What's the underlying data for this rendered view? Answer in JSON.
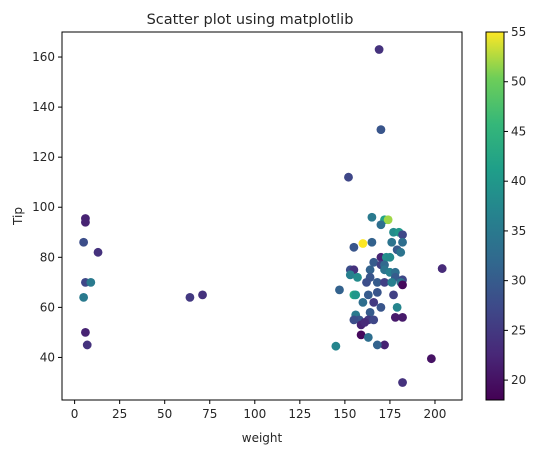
{
  "chart_data": {
    "type": "scatter",
    "title": "Scatter plot using matplotlib",
    "xlabel": "weight",
    "ylabel": "Tip",
    "xlim": [
      -7,
      215
    ],
    "ylim": [
      23,
      170
    ],
    "xticks": [
      0,
      25,
      50,
      75,
      100,
      125,
      150,
      175,
      200
    ],
    "yticks": [
      40,
      60,
      80,
      100,
      120,
      140,
      160
    ],
    "grid": false,
    "colormap": "viridis",
    "colorbar": {
      "range": [
        18,
        55
      ],
      "ticks": [
        20,
        25,
        30,
        35,
        40,
        45,
        50,
        55
      ]
    },
    "points": [
      {
        "x": 6,
        "y": 95.5,
        "c": 22
      },
      {
        "x": 6,
        "y": 94,
        "c": 22
      },
      {
        "x": 5,
        "y": 86,
        "c": 28
      },
      {
        "x": 13,
        "y": 82,
        "c": 24
      },
      {
        "x": 6,
        "y": 70,
        "c": 27
      },
      {
        "x": 9,
        "y": 70,
        "c": 35
      },
      {
        "x": 5,
        "y": 64,
        "c": 35
      },
      {
        "x": 6,
        "y": 50,
        "c": 22
      },
      {
        "x": 7,
        "y": 45,
        "c": 24
      },
      {
        "x": 64,
        "y": 64,
        "c": 25
      },
      {
        "x": 71,
        "y": 65,
        "c": 24
      },
      {
        "x": 169,
        "y": 163,
        "c": 24
      },
      {
        "x": 170,
        "y": 131,
        "c": 29
      },
      {
        "x": 152,
        "y": 112,
        "c": 27
      },
      {
        "x": 165,
        "y": 96,
        "c": 35
      },
      {
        "x": 172,
        "y": 95,
        "c": 42
      },
      {
        "x": 174,
        "y": 95,
        "c": 52
      },
      {
        "x": 170,
        "y": 93,
        "c": 33
      },
      {
        "x": 177,
        "y": 90,
        "c": 38
      },
      {
        "x": 180,
        "y": 90,
        "c": 40
      },
      {
        "x": 182,
        "y": 89,
        "c": 27
      },
      {
        "x": 165,
        "y": 86,
        "c": 31
      },
      {
        "x": 176,
        "y": 86,
        "c": 34
      },
      {
        "x": 160,
        "y": 85.5,
        "c": 55
      },
      {
        "x": 182,
        "y": 86,
        "c": 33
      },
      {
        "x": 155,
        "y": 84,
        "c": 29
      },
      {
        "x": 179,
        "y": 83,
        "c": 30
      },
      {
        "x": 181,
        "y": 82,
        "c": 34
      },
      {
        "x": 170,
        "y": 80,
        "c": 22
      },
      {
        "x": 173,
        "y": 80,
        "c": 39
      },
      {
        "x": 175,
        "y": 80,
        "c": 38
      },
      {
        "x": 166,
        "y": 78,
        "c": 30
      },
      {
        "x": 170,
        "y": 77,
        "c": 26
      },
      {
        "x": 172,
        "y": 77,
        "c": 32
      },
      {
        "x": 153,
        "y": 75,
        "c": 28
      },
      {
        "x": 155,
        "y": 75,
        "c": 24
      },
      {
        "x": 164,
        "y": 75,
        "c": 31
      },
      {
        "x": 172,
        "y": 75,
        "c": 34
      },
      {
        "x": 175,
        "y": 74,
        "c": 36
      },
      {
        "x": 178,
        "y": 74,
        "c": 33
      },
      {
        "x": 153,
        "y": 73,
        "c": 36
      },
      {
        "x": 157,
        "y": 72,
        "c": 38
      },
      {
        "x": 164,
        "y": 72,
        "c": 29
      },
      {
        "x": 178,
        "y": 72,
        "c": 30
      },
      {
        "x": 182,
        "y": 71,
        "c": 27
      },
      {
        "x": 181,
        "y": 70,
        "c": 34
      },
      {
        "x": 162,
        "y": 70,
        "c": 28
      },
      {
        "x": 168,
        "y": 70,
        "c": 30
      },
      {
        "x": 172,
        "y": 70,
        "c": 26
      },
      {
        "x": 176,
        "y": 70,
        "c": 36
      },
      {
        "x": 182,
        "y": 69,
        "c": 19
      },
      {
        "x": 204,
        "y": 75.5,
        "c": 23
      },
      {
        "x": 147,
        "y": 67,
        "c": 31
      },
      {
        "x": 155,
        "y": 65,
        "c": 43
      },
      {
        "x": 156,
        "y": 65,
        "c": 40
      },
      {
        "x": 163,
        "y": 65,
        "c": 30
      },
      {
        "x": 168,
        "y": 66,
        "c": 29
      },
      {
        "x": 177,
        "y": 65,
        "c": 26
      },
      {
        "x": 160,
        "y": 62,
        "c": 33
      },
      {
        "x": 166,
        "y": 62,
        "c": 25
      },
      {
        "x": 170,
        "y": 60,
        "c": 29
      },
      {
        "x": 179,
        "y": 60,
        "c": 37
      },
      {
        "x": 164,
        "y": 58,
        "c": 30
      },
      {
        "x": 156,
        "y": 57,
        "c": 35
      },
      {
        "x": 158,
        "y": 55,
        "c": 29
      },
      {
        "x": 163,
        "y": 55,
        "c": 25
      },
      {
        "x": 166,
        "y": 55,
        "c": 27
      },
      {
        "x": 178,
        "y": 56,
        "c": 21
      },
      {
        "x": 182,
        "y": 56,
        "c": 21
      },
      {
        "x": 155,
        "y": 55,
        "c": 28
      },
      {
        "x": 159,
        "y": 53,
        "c": 22
      },
      {
        "x": 161,
        "y": 54,
        "c": 23
      },
      {
        "x": 159,
        "y": 49,
        "c": 19
      },
      {
        "x": 163,
        "y": 48,
        "c": 33
      },
      {
        "x": 172,
        "y": 45,
        "c": 22
      },
      {
        "x": 168,
        "y": 45,
        "c": 31
      },
      {
        "x": 145,
        "y": 44.5,
        "c": 37
      },
      {
        "x": 198,
        "y": 39.5,
        "c": 20
      },
      {
        "x": 182,
        "y": 30,
        "c": 24
      }
    ]
  }
}
